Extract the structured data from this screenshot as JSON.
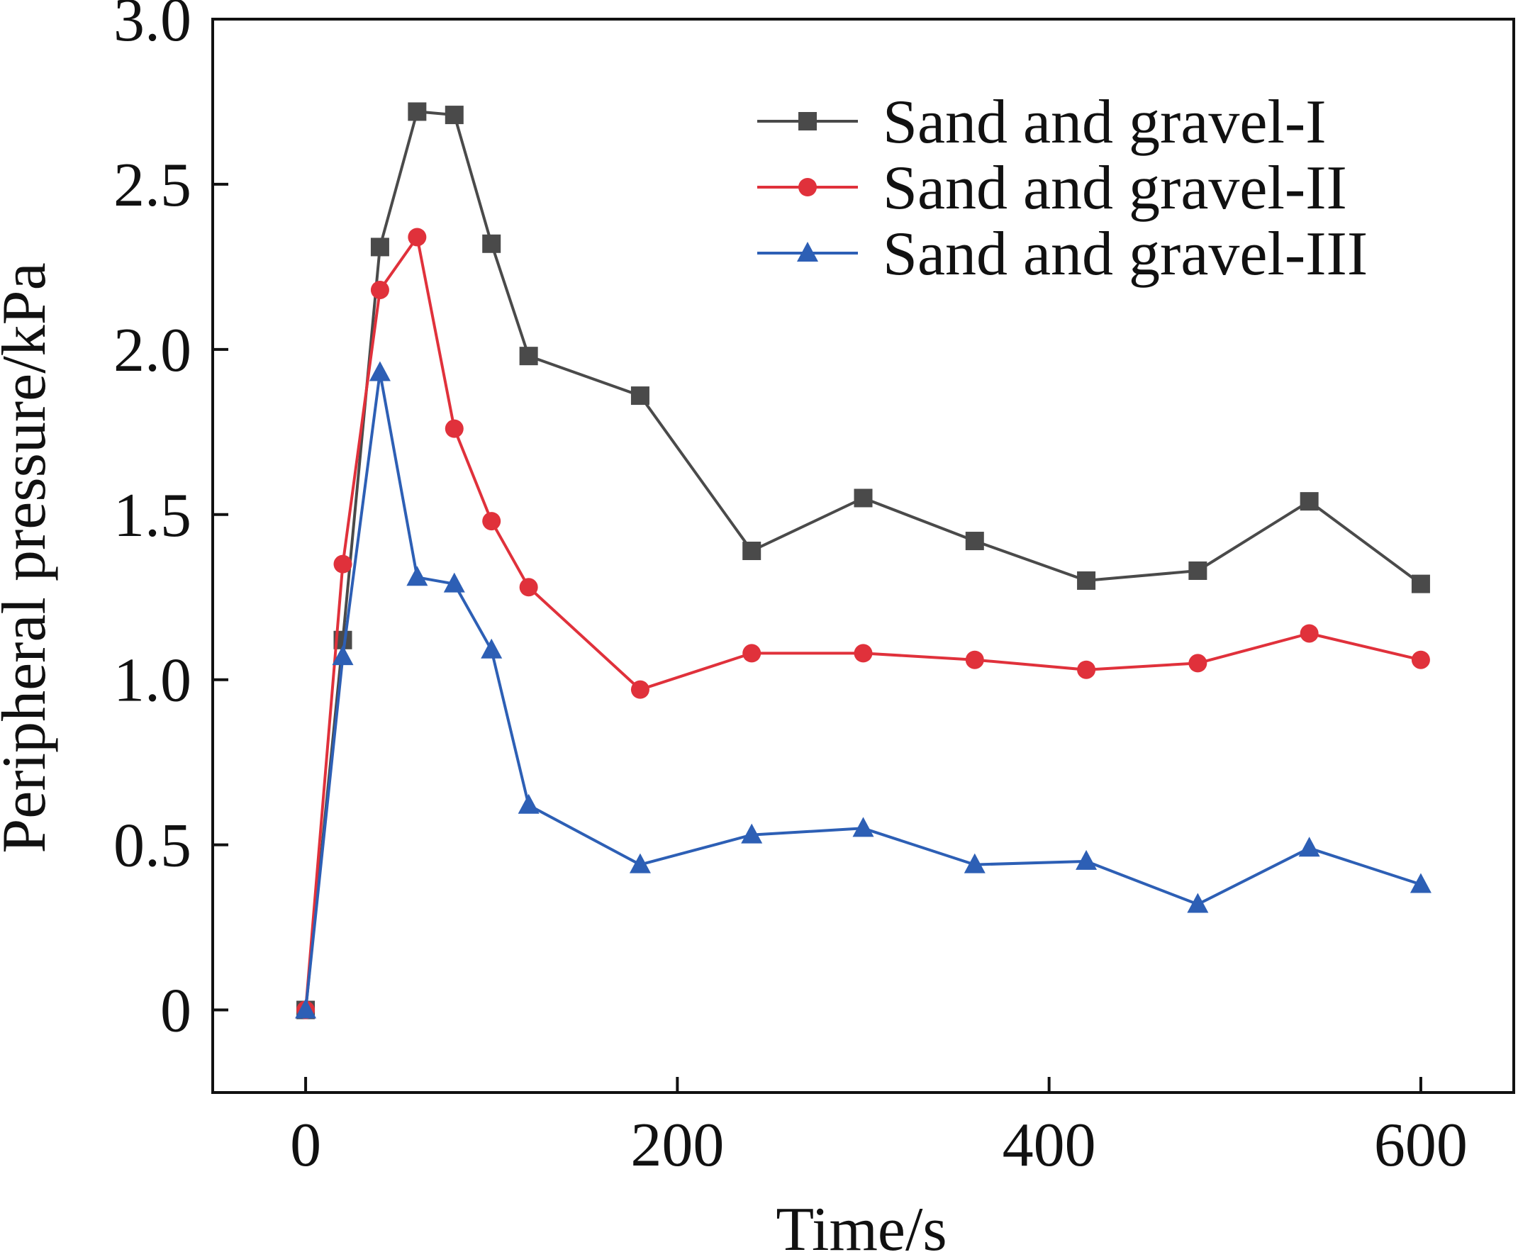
{
  "chart_data": {
    "type": "line",
    "title": "",
    "xlabel": "Time/s",
    "ylabel": "Peripheral pressure/kPa",
    "xlim": [
      -50,
      650
    ],
    "ylim": [
      -0.25,
      3.0
    ],
    "xticks": [
      0,
      200,
      400,
      600
    ],
    "xtick_labels": [
      "0",
      "200",
      "400",
      "600"
    ],
    "yticks": [
      0,
      0.5,
      1.0,
      1.5,
      2.0,
      2.5,
      3.0
    ],
    "ytick_labels": [
      "0",
      "0.5",
      "1.0",
      "1.5",
      "2.0",
      "2.5",
      "3.0"
    ],
    "grid": false,
    "legend_position": "top-right",
    "series": [
      {
        "name": "Sand and gravel-I",
        "color": "#4a4a4a",
        "marker": "square",
        "x": [
          0,
          20,
          40,
          60,
          80,
          100,
          120,
          180,
          240,
          300,
          360,
          420,
          480,
          540,
          600
        ],
        "y": [
          0.0,
          1.12,
          2.31,
          2.72,
          2.71,
          2.32,
          1.98,
          1.86,
          1.39,
          1.55,
          1.42,
          1.3,
          1.33,
          1.54,
          1.29
        ]
      },
      {
        "name": "Sand and gravel-II",
        "color": "#e0313b",
        "marker": "circle",
        "x": [
          0,
          20,
          40,
          60,
          80,
          100,
          120,
          180,
          240,
          300,
          360,
          420,
          480,
          540,
          600
        ],
        "y": [
          0.0,
          1.35,
          2.18,
          2.34,
          1.76,
          1.48,
          1.28,
          0.97,
          1.08,
          1.08,
          1.06,
          1.03,
          1.05,
          1.14,
          1.06
        ]
      },
      {
        "name": "Sand and gravel-III",
        "color": "#2d5fb5",
        "marker": "triangle",
        "x": [
          0,
          20,
          40,
          60,
          80,
          100,
          120,
          180,
          240,
          300,
          360,
          420,
          480,
          540,
          600
        ],
        "y": [
          0.0,
          1.07,
          1.93,
          1.31,
          1.29,
          1.09,
          0.62,
          0.44,
          0.53,
          0.55,
          0.44,
          0.45,
          0.32,
          0.49,
          0.38
        ]
      }
    ]
  }
}
